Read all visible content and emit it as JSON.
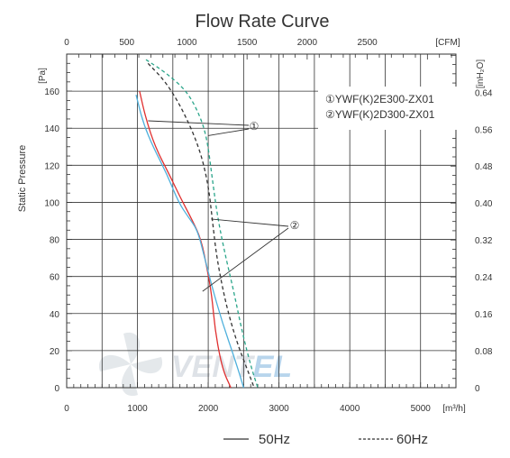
{
  "chart_data": {
    "type": "line",
    "title": "Flow Rate Curve",
    "xlabel": "",
    "x_unit_bottom": "[m³/h]",
    "x_unit_top": "[CFM]",
    "ylabel": "Static Pressure",
    "y_unit_left": "[Pa]",
    "y_unit_right": "[inH₂O]",
    "xlim": [
      0,
      5500
    ],
    "ylim": [
      0,
      180
    ],
    "grid": true,
    "x_ticks": [
      0,
      1000,
      2000,
      3000,
      4000,
      5000
    ],
    "y_ticks": [
      0,
      20,
      40,
      60,
      80,
      100,
      120,
      140,
      160
    ],
    "cfm_ticks": [
      0,
      500,
      1000,
      1500,
      2000,
      2500
    ],
    "inh2o_ticks": [
      "0",
      "0.08",
      "0.16",
      "0.24",
      "0.32",
      "0.40",
      "0.48",
      "0.56",
      "0.64"
    ],
    "legend_box": [
      "①YWF(K)2E300-ZX01",
      "②YWF(K)2D300-ZX01"
    ],
    "callouts": [
      "①",
      "②"
    ],
    "line_style_legend": [
      {
        "label": "50Hz",
        "dash": "solid"
      },
      {
        "label": "60Hz",
        "dash": "dashed"
      }
    ],
    "series": [
      {
        "color": "#e03030",
        "dash": "solid",
        "points": [
          [
            1030,
            160
          ],
          [
            1120,
            145
          ],
          [
            1250,
            130
          ],
          [
            1450,
            115
          ],
          [
            1600,
            103
          ],
          [
            1780,
            90
          ],
          [
            1900,
            80
          ],
          [
            1980,
            65
          ],
          [
            2050,
            50
          ],
          [
            2100,
            30
          ],
          [
            2200,
            10
          ],
          [
            2320,
            0
          ]
        ]
      },
      {
        "color": "#4eb0dc",
        "dash": "solid",
        "points": [
          [
            980,
            158
          ],
          [
            1080,
            143
          ],
          [
            1220,
            130
          ],
          [
            1420,
            115
          ],
          [
            1580,
            100
          ],
          [
            1720,
            92
          ],
          [
            1850,
            85
          ],
          [
            1950,
            70
          ],
          [
            2050,
            55
          ],
          [
            2200,
            35
          ],
          [
            2380,
            15
          ],
          [
            2500,
            0
          ]
        ]
      },
      {
        "color": "#333333",
        "dash": "dashed",
        "points": [
          [
            1150,
            175
          ],
          [
            1400,
            165
          ],
          [
            1640,
            150
          ],
          [
            1870,
            130
          ],
          [
            2000,
            110
          ],
          [
            2060,
            90
          ],
          [
            2120,
            70
          ],
          [
            2250,
            45
          ],
          [
            2400,
            25
          ],
          [
            2550,
            10
          ],
          [
            2650,
            0
          ]
        ]
      },
      {
        "color": "#2aa58a",
        "dash": "dashed",
        "points": [
          [
            1120,
            177
          ],
          [
            1400,
            170
          ],
          [
            1700,
            160
          ],
          [
            1880,
            147
          ],
          [
            1980,
            135
          ],
          [
            2050,
            115
          ],
          [
            2120,
            95
          ],
          [
            2220,
            75
          ],
          [
            2360,
            52
          ],
          [
            2480,
            30
          ],
          [
            2600,
            12
          ],
          [
            2700,
            0
          ]
        ]
      }
    ]
  },
  "watermark": {
    "brand_left": "VENT",
    "brand_right": "EL",
    "brand_right_color": "#7fb3dd"
  }
}
